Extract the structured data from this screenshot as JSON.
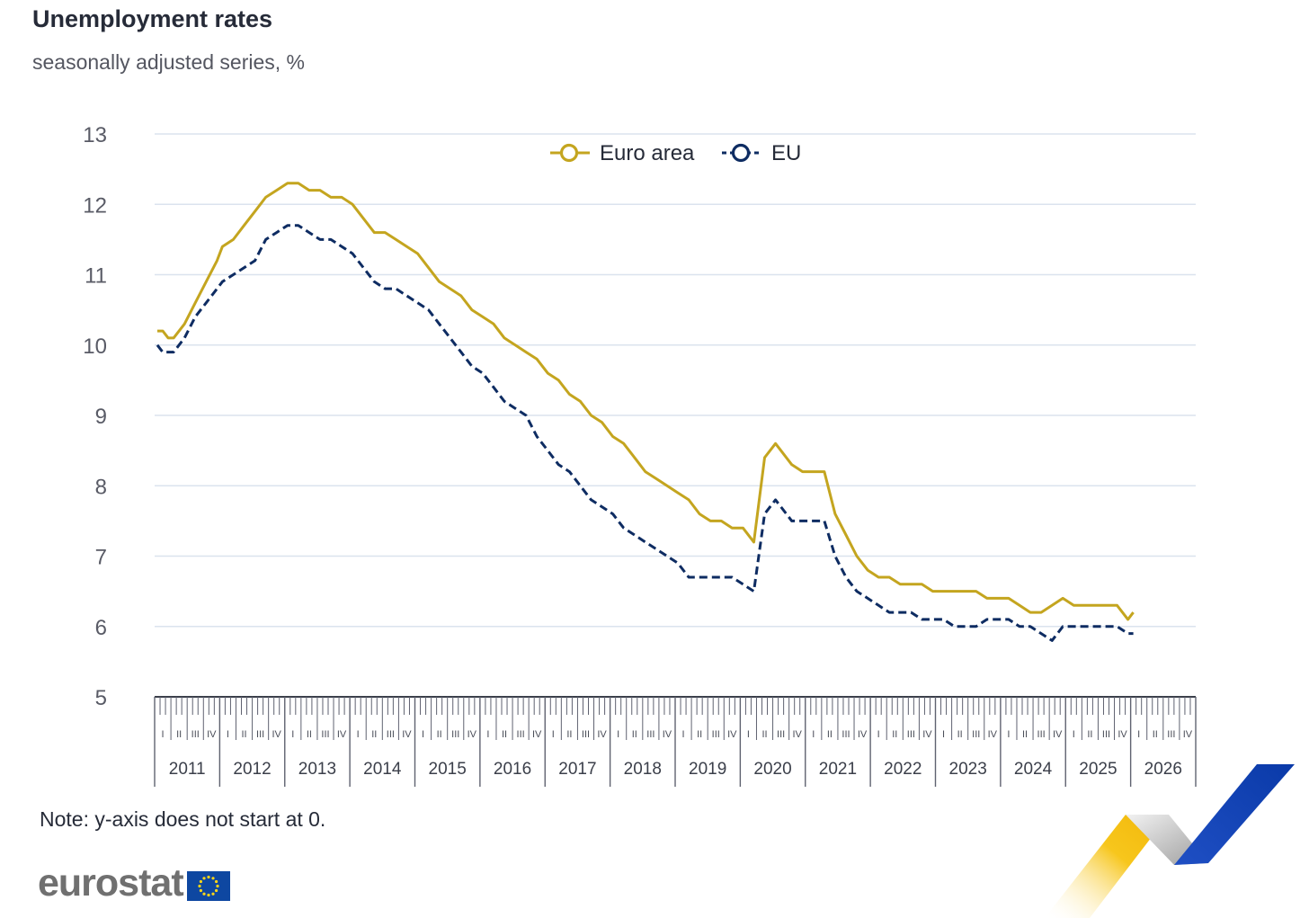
{
  "title": "Unemployment rates",
  "subtitle": "seasonally adjusted series, %",
  "note": "Note: y-axis does not start at 0.",
  "logo_text": "eurostat",
  "colors": {
    "euro_area": "#c4a51f",
    "eu": "#0e2c62",
    "grid": "#dbe3ee",
    "axis_text": "#595b66"
  },
  "chart_data": {
    "type": "line",
    "title": "Unemployment rates",
    "subtitle": "seasonally adjusted series, %",
    "ylim": [
      5,
      13
    ],
    "yticks": [
      "5",
      "6",
      "7",
      "8",
      "9",
      "10",
      "11",
      "12",
      "13"
    ],
    "grid": true,
    "legend_position": "top-center",
    "years": [
      "2011",
      "2012",
      "2013",
      "2014",
      "2015",
      "2016",
      "2017",
      "2018",
      "2019",
      "2020",
      "2021",
      "2022",
      "2023",
      "2024",
      "2025",
      "2026"
    ],
    "quarters": [
      "I",
      "II",
      "III",
      "IV"
    ],
    "x_start": "2011-01",
    "x_end": "2026-12",
    "series": [
      {
        "name": "Euro area",
        "style": "solid",
        "x": [
          "2011-01",
          "2011-02",
          "2011-03",
          "2011-04",
          "2011-06",
          "2011-08",
          "2011-10",
          "2011-12",
          "2012-01",
          "2012-03",
          "2012-05",
          "2012-07",
          "2012-09",
          "2012-11",
          "2013-01",
          "2013-03",
          "2013-05",
          "2013-07",
          "2013-09",
          "2013-11",
          "2014-01",
          "2014-03",
          "2014-05",
          "2014-07",
          "2014-09",
          "2014-11",
          "2015-01",
          "2015-03",
          "2015-05",
          "2015-07",
          "2015-09",
          "2015-11",
          "2016-01",
          "2016-03",
          "2016-05",
          "2016-07",
          "2016-09",
          "2016-11",
          "2017-01",
          "2017-03",
          "2017-05",
          "2017-07",
          "2017-09",
          "2017-11",
          "2018-01",
          "2018-03",
          "2018-05",
          "2018-07",
          "2018-09",
          "2018-11",
          "2019-01",
          "2019-03",
          "2019-05",
          "2019-07",
          "2019-09",
          "2019-11",
          "2020-01",
          "2020-03",
          "2020-05",
          "2020-07",
          "2020-08",
          "2020-10",
          "2020-12",
          "2021-02",
          "2021-04",
          "2021-06",
          "2021-08",
          "2021-10",
          "2021-12",
          "2022-02",
          "2022-04",
          "2022-06",
          "2022-08",
          "2022-10",
          "2022-12",
          "2023-02",
          "2023-04",
          "2023-06",
          "2023-08",
          "2023-10",
          "2023-12",
          "2024-02",
          "2024-04",
          "2024-06",
          "2024-08",
          "2024-10",
          "2024-12",
          "2025-02",
          "2025-04",
          "2025-06",
          "2025-08",
          "2025-10",
          "2025-12",
          "2026-01"
        ],
        "y": [
          10.2,
          10.2,
          10.1,
          10.1,
          10.3,
          10.6,
          10.9,
          11.2,
          11.4,
          11.5,
          11.7,
          11.9,
          12.1,
          12.2,
          12.3,
          12.3,
          12.2,
          12.2,
          12.1,
          12.1,
          12.0,
          11.8,
          11.6,
          11.6,
          11.5,
          11.4,
          11.3,
          11.1,
          10.9,
          10.8,
          10.7,
          10.5,
          10.4,
          10.3,
          10.1,
          10.0,
          9.9,
          9.8,
          9.6,
          9.5,
          9.3,
          9.2,
          9.0,
          8.9,
          8.7,
          8.6,
          8.4,
          8.2,
          8.1,
          8.0,
          7.9,
          7.8,
          7.6,
          7.5,
          7.5,
          7.4,
          7.4,
          7.2,
          8.4,
          8.6,
          8.5,
          8.3,
          8.2,
          8.2,
          8.2,
          7.6,
          7.3,
          7.0,
          6.8,
          6.7,
          6.7,
          6.6,
          6.6,
          6.6,
          6.5,
          6.5,
          6.5,
          6.5,
          6.5,
          6.4,
          6.4,
          6.4,
          6.3,
          6.2,
          6.2,
          6.3,
          6.4,
          6.3,
          6.3,
          6.3,
          6.3,
          6.3,
          6.1,
          6.2
        ]
      },
      {
        "name": "EU",
        "style": "dashed",
        "x": [
          "2011-01",
          "2011-02",
          "2011-03",
          "2011-04",
          "2011-06",
          "2011-08",
          "2011-10",
          "2011-12",
          "2012-01",
          "2012-03",
          "2012-05",
          "2012-07",
          "2012-09",
          "2012-11",
          "2013-01",
          "2013-03",
          "2013-05",
          "2013-07",
          "2013-09",
          "2013-11",
          "2014-01",
          "2014-03",
          "2014-05",
          "2014-07",
          "2014-09",
          "2014-11",
          "2015-01",
          "2015-03",
          "2015-05",
          "2015-07",
          "2015-09",
          "2015-11",
          "2016-01",
          "2016-03",
          "2016-05",
          "2016-07",
          "2016-09",
          "2016-11",
          "2017-01",
          "2017-03",
          "2017-05",
          "2017-07",
          "2017-09",
          "2017-11",
          "2018-01",
          "2018-03",
          "2018-05",
          "2018-07",
          "2018-09",
          "2018-11",
          "2019-01",
          "2019-03",
          "2019-05",
          "2019-07",
          "2019-09",
          "2019-11",
          "2020-01",
          "2020-03",
          "2020-05",
          "2020-07",
          "2020-08",
          "2020-10",
          "2020-12",
          "2021-02",
          "2021-04",
          "2021-06",
          "2021-08",
          "2021-10",
          "2021-12",
          "2022-02",
          "2022-04",
          "2022-06",
          "2022-08",
          "2022-10",
          "2022-12",
          "2023-02",
          "2023-04",
          "2023-06",
          "2023-08",
          "2023-10",
          "2023-12",
          "2024-02",
          "2024-04",
          "2024-06",
          "2024-08",
          "2024-10",
          "2024-12",
          "2025-02",
          "2025-04",
          "2025-06",
          "2025-08",
          "2025-10",
          "2025-12",
          "2026-01"
        ],
        "y": [
          10.0,
          9.9,
          9.9,
          9.9,
          10.1,
          10.4,
          10.6,
          10.8,
          10.9,
          11.0,
          11.1,
          11.2,
          11.5,
          11.6,
          11.7,
          11.7,
          11.6,
          11.5,
          11.5,
          11.4,
          11.3,
          11.1,
          10.9,
          10.8,
          10.8,
          10.7,
          10.6,
          10.5,
          10.3,
          10.1,
          9.9,
          9.7,
          9.6,
          9.4,
          9.2,
          9.1,
          9.0,
          8.7,
          8.5,
          8.3,
          8.2,
          8.0,
          7.8,
          7.7,
          7.6,
          7.4,
          7.3,
          7.2,
          7.1,
          7.0,
          6.9,
          6.7,
          6.7,
          6.7,
          6.7,
          6.7,
          6.6,
          6.5,
          7.6,
          7.8,
          7.7,
          7.5,
          7.5,
          7.5,
          7.5,
          7.0,
          6.7,
          6.5,
          6.4,
          6.3,
          6.2,
          6.2,
          6.2,
          6.1,
          6.1,
          6.1,
          6.0,
          6.0,
          6.0,
          6.1,
          6.1,
          6.1,
          6.0,
          6.0,
          5.9,
          5.8,
          6.0,
          6.0,
          6.0,
          6.0,
          6.0,
          6.0,
          5.9,
          5.9
        ]
      }
    ]
  }
}
